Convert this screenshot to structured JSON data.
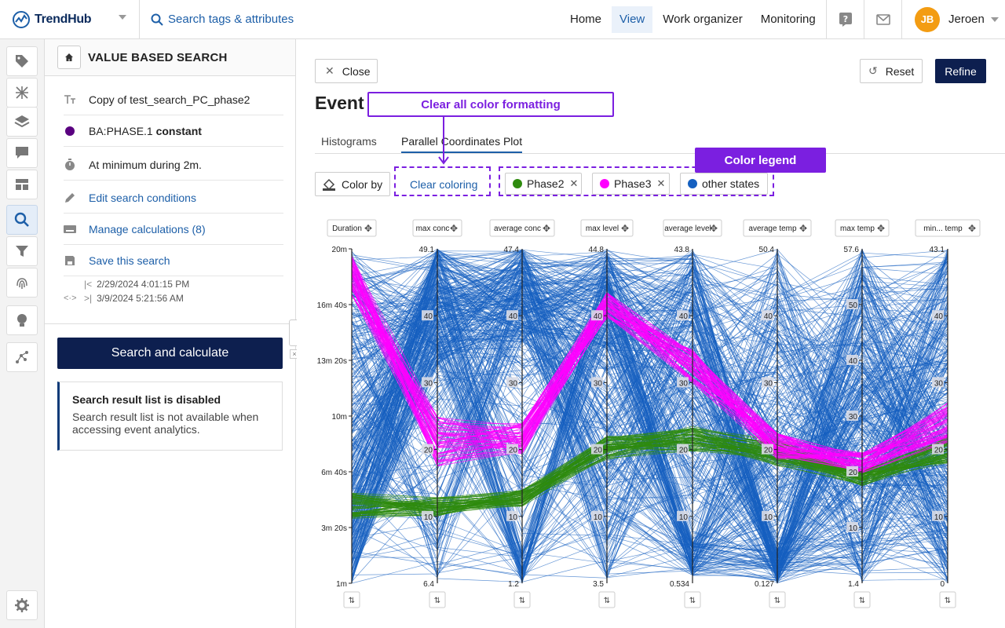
{
  "app": {
    "logo": "TrendHub",
    "search_placeholder": "Search tags & attributes"
  },
  "nav": {
    "items": [
      "Home",
      "View",
      "Work organizer",
      "Monitoring"
    ],
    "active": "View"
  },
  "user": {
    "initials": "JB",
    "name": "Jeroen",
    "avatar_color": "#f39c12"
  },
  "panel": {
    "title": "VALUE BASED SEARCH",
    "search_name": "Copy of test_search_PC_phase2",
    "condition_tag": "BA:PHASE.1",
    "condition_value": "constant",
    "duration_condition": "At minimum during 2m.",
    "edit_link": "Edit search conditions",
    "manage_link": "Manage calculations (8)",
    "save_link": "Save this search",
    "date_start": "2/29/2024 4:01:15 PM",
    "date_end": "3/9/2024 5:21:56 AM",
    "search_button": "Search and calculate",
    "notice_title": "Search result list is disabled",
    "notice_text": "Search result list is not available when accessing event analytics."
  },
  "main": {
    "close": "Close",
    "reset": "Reset",
    "refine": "Refine",
    "title": "Event",
    "tabs": [
      "Histograms",
      "Parallel Coordinates Plot"
    ],
    "active_tab": "Parallel Coordinates Plot",
    "color_by": "Color by",
    "clear_coloring": "Clear coloring",
    "legend": [
      {
        "label": "Phase2",
        "color": "#2e8b0e"
      },
      {
        "label": "Phase3",
        "color": "#ff00ff"
      },
      {
        "label": "other states",
        "color": "#1560c0"
      }
    ]
  },
  "annotations": {
    "clear_all": "Clear all color formatting",
    "legend": "Color legend"
  },
  "chart_data": {
    "type": "parallel_coordinates",
    "axes": [
      {
        "name": "Duration",
        "min_label": "1m",
        "max_label": "20m",
        "ticks": [
          "1m",
          "3m 20s",
          "6m 40s",
          "10m",
          "13m 20s",
          "16m 40s",
          "20m"
        ]
      },
      {
        "name": "max conc",
        "min_label": "6.4",
        "max_label": "49.1",
        "ticks": [
          "10",
          "20",
          "30",
          "40"
        ]
      },
      {
        "name": "average conc",
        "min_label": "1.2",
        "max_label": "47.4",
        "ticks": [
          "10",
          "20",
          "30",
          "40"
        ]
      },
      {
        "name": "max level",
        "min_label": "3.5",
        "max_label": "44.8",
        "ticks": [
          "10",
          "20",
          "30",
          "40"
        ]
      },
      {
        "name": "average level",
        "min_label": "0.534",
        "max_label": "43.8",
        "ticks": [
          "10",
          "20",
          "30",
          "40"
        ]
      },
      {
        "name": "average temp",
        "min_label": "0.127",
        "max_label": "50.4",
        "ticks": [
          "10",
          "20",
          "30",
          "40"
        ]
      },
      {
        "name": "max temp",
        "min_label": "1.4",
        "max_label": "57.6",
        "ticks": [
          "10",
          "20",
          "30",
          "40",
          "50"
        ]
      },
      {
        "name": "min... temp",
        "min_label": "0",
        "max_label": "43.1",
        "ticks": [
          "10",
          "20",
          "30",
          "40"
        ]
      }
    ],
    "series": [
      {
        "name": "Phase2",
        "color": "#2e8b0e"
      },
      {
        "name": "Phase3",
        "color": "#ff00ff"
      },
      {
        "name": "other states",
        "color": "#1560c0"
      }
    ]
  }
}
